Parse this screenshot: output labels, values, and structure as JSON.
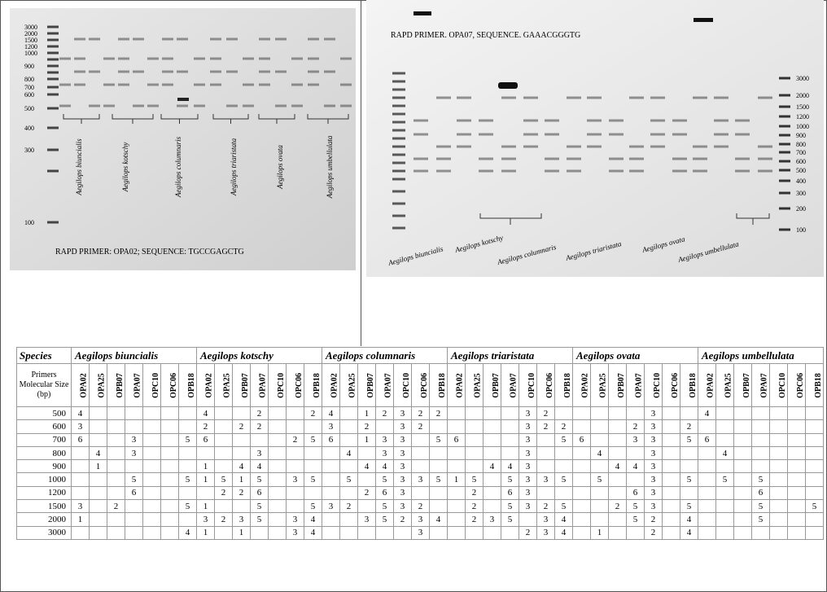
{
  "gels": [
    {
      "ladder": [
        3000,
        2000,
        1500,
        1200,
        1000,
        900,
        800,
        700,
        600,
        500,
        400,
        300,
        100
      ],
      "species": [
        "Aegilops biuncialis",
        "Aegilops kotschy",
        "Aegilops columnaris",
        "Aegilops triaristata",
        "Aegilops ovata",
        "Aegilops umbellulata"
      ],
      "caption": "RAPD PRIMER: OPA02; SEQUENCE: TGCCGAGCTG"
    },
    {
      "ladder": [
        3000,
        2000,
        1500,
        1200,
        1000,
        900,
        800,
        700,
        600,
        500,
        400,
        300,
        200,
        100
      ],
      "species": [
        "Aegilops biuncialis",
        "Aegilops kotschy",
        "Aegilops columnaris",
        "Aegilops triaristata",
        "Aegilops ovata",
        "Aegilops umbellulata"
      ],
      "caption": "RAPD PRIMER. OPA07, SEQUENCE. GAAACGGGTG"
    }
  ],
  "table": {
    "corner": "Species",
    "size_header": "Primers Molecular Size (bp)",
    "species": [
      "Aegilops biuncialis",
      "Aegilops kotschy",
      "Aegilops columnaris",
      "Aegilops triaristata",
      "Aegilops ovata",
      "Aegilops umbellulata"
    ],
    "primers": [
      "OPA02",
      "OPA25",
      "OPB07",
      "OPA07",
      "OPC10",
      "OPC06",
      "OPB18"
    ],
    "rows": [
      {
        "size": 500,
        "cells": [
          4,
          null,
          null,
          null,
          null,
          null,
          null,
          4,
          null,
          null,
          2,
          null,
          null,
          2,
          4,
          null,
          1,
          2,
          3,
          2,
          2,
          null,
          null,
          null,
          null,
          3,
          2,
          null,
          null,
          null,
          null,
          null,
          3,
          null,
          null,
          4,
          null,
          null,
          null,
          null,
          null,
          null
        ]
      },
      {
        "size": 600,
        "cells": [
          3,
          null,
          null,
          null,
          null,
          null,
          null,
          2,
          null,
          2,
          2,
          null,
          null,
          null,
          3,
          null,
          2,
          null,
          3,
          2,
          null,
          null,
          null,
          null,
          null,
          3,
          2,
          2,
          null,
          null,
          null,
          2,
          3,
          null,
          2,
          null,
          null,
          null,
          null,
          null,
          null,
          null
        ]
      },
      {
        "size": 700,
        "cells": [
          6,
          null,
          null,
          3,
          null,
          null,
          5,
          6,
          null,
          null,
          null,
          null,
          2,
          5,
          6,
          null,
          1,
          3,
          3,
          null,
          5,
          6,
          null,
          null,
          null,
          3,
          null,
          5,
          6,
          null,
          null,
          3,
          3,
          null,
          5,
          6,
          null,
          null,
          null,
          null,
          null,
          null
        ]
      },
      {
        "size": 800,
        "cells": [
          null,
          4,
          null,
          3,
          null,
          null,
          null,
          null,
          null,
          null,
          3,
          null,
          null,
          null,
          null,
          4,
          null,
          3,
          3,
          null,
          null,
          null,
          null,
          null,
          null,
          3,
          null,
          null,
          null,
          4,
          null,
          null,
          3,
          null,
          null,
          null,
          4,
          null,
          null,
          null,
          null,
          null
        ]
      },
      {
        "size": 900,
        "cells": [
          null,
          1,
          null,
          null,
          null,
          null,
          null,
          1,
          null,
          4,
          4,
          null,
          null,
          null,
          null,
          null,
          4,
          4,
          3,
          null,
          null,
          null,
          null,
          4,
          4,
          3,
          null,
          null,
          null,
          null,
          4,
          4,
          3,
          null,
          null,
          null,
          null,
          null,
          null,
          null,
          null,
          null
        ]
      },
      {
        "size": 1000,
        "cells": [
          null,
          null,
          null,
          5,
          null,
          null,
          5,
          1,
          5,
          1,
          5,
          null,
          3,
          5,
          null,
          5,
          null,
          5,
          3,
          3,
          5,
          1,
          5,
          null,
          5,
          3,
          3,
          5,
          null,
          5,
          null,
          null,
          3,
          null,
          5,
          null,
          5,
          null,
          5,
          null,
          null,
          null
        ]
      },
      {
        "size": 1200,
        "cells": [
          null,
          null,
          null,
          6,
          null,
          null,
          null,
          null,
          2,
          2,
          6,
          null,
          null,
          null,
          null,
          null,
          2,
          6,
          3,
          null,
          null,
          null,
          2,
          null,
          6,
          3,
          null,
          null,
          null,
          null,
          null,
          6,
          3,
          null,
          null,
          null,
          null,
          null,
          6,
          null,
          null,
          null
        ]
      },
      {
        "size": 1500,
        "cells": [
          3,
          null,
          2,
          null,
          null,
          null,
          5,
          1,
          null,
          null,
          5,
          null,
          null,
          5,
          3,
          2,
          null,
          5,
          3,
          2,
          null,
          null,
          2,
          null,
          5,
          3,
          2,
          5,
          null,
          null,
          2,
          5,
          3,
          null,
          5,
          null,
          null,
          null,
          5,
          null,
          null,
          5
        ]
      },
      {
        "size": 2000,
        "cells": [
          1,
          null,
          null,
          null,
          null,
          null,
          null,
          3,
          2,
          3,
          5,
          null,
          3,
          4,
          null,
          null,
          3,
          5,
          2,
          3,
          4,
          null,
          2,
          3,
          5,
          null,
          3,
          4,
          null,
          null,
          null,
          5,
          2,
          null,
          4,
          null,
          null,
          null,
          5,
          null,
          null,
          null
        ]
      },
      {
        "size": 3000,
        "cells": [
          null,
          null,
          null,
          null,
          null,
          null,
          4,
          1,
          null,
          1,
          null,
          null,
          3,
          4,
          null,
          null,
          null,
          null,
          null,
          3,
          null,
          null,
          null,
          null,
          null,
          2,
          3,
          4,
          null,
          1,
          null,
          null,
          2,
          null,
          4,
          null,
          null,
          null,
          null,
          null,
          null,
          null
        ]
      }
    ]
  }
}
